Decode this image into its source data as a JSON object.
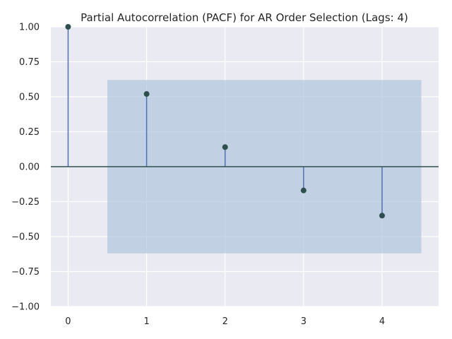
{
  "chart_data": {
    "type": "stem",
    "title": "Partial Autocorrelation (PACF) for AR Order Selection (Lags: 4)",
    "xlabel": "",
    "ylabel": "",
    "x": [
      0,
      1,
      2,
      3,
      4
    ],
    "values": [
      1.0,
      0.52,
      0.14,
      -0.17,
      -0.35
    ],
    "xlim": [
      -0.22,
      4.72
    ],
    "ylim": [
      -1.0,
      1.0
    ],
    "xticks": [
      "0",
      "1",
      "2",
      "3",
      "4"
    ],
    "yticks": [
      "1.00",
      "0.75",
      "0.50",
      "0.25",
      "0.00",
      "−0.25",
      "−0.50",
      "−0.75",
      "−1.00"
    ],
    "confidence_band": {
      "x_range": [
        0.5,
        4.5
      ],
      "y_range": [
        -0.62,
        0.62
      ]
    },
    "grid": true,
    "colors": {
      "background": "#eaeaf2",
      "grid": "#ffffff",
      "stem": "#4c72b0",
      "marker": "#2f4f4f",
      "zero_line": "#2f4f4f",
      "band": "#b0c4de"
    }
  }
}
